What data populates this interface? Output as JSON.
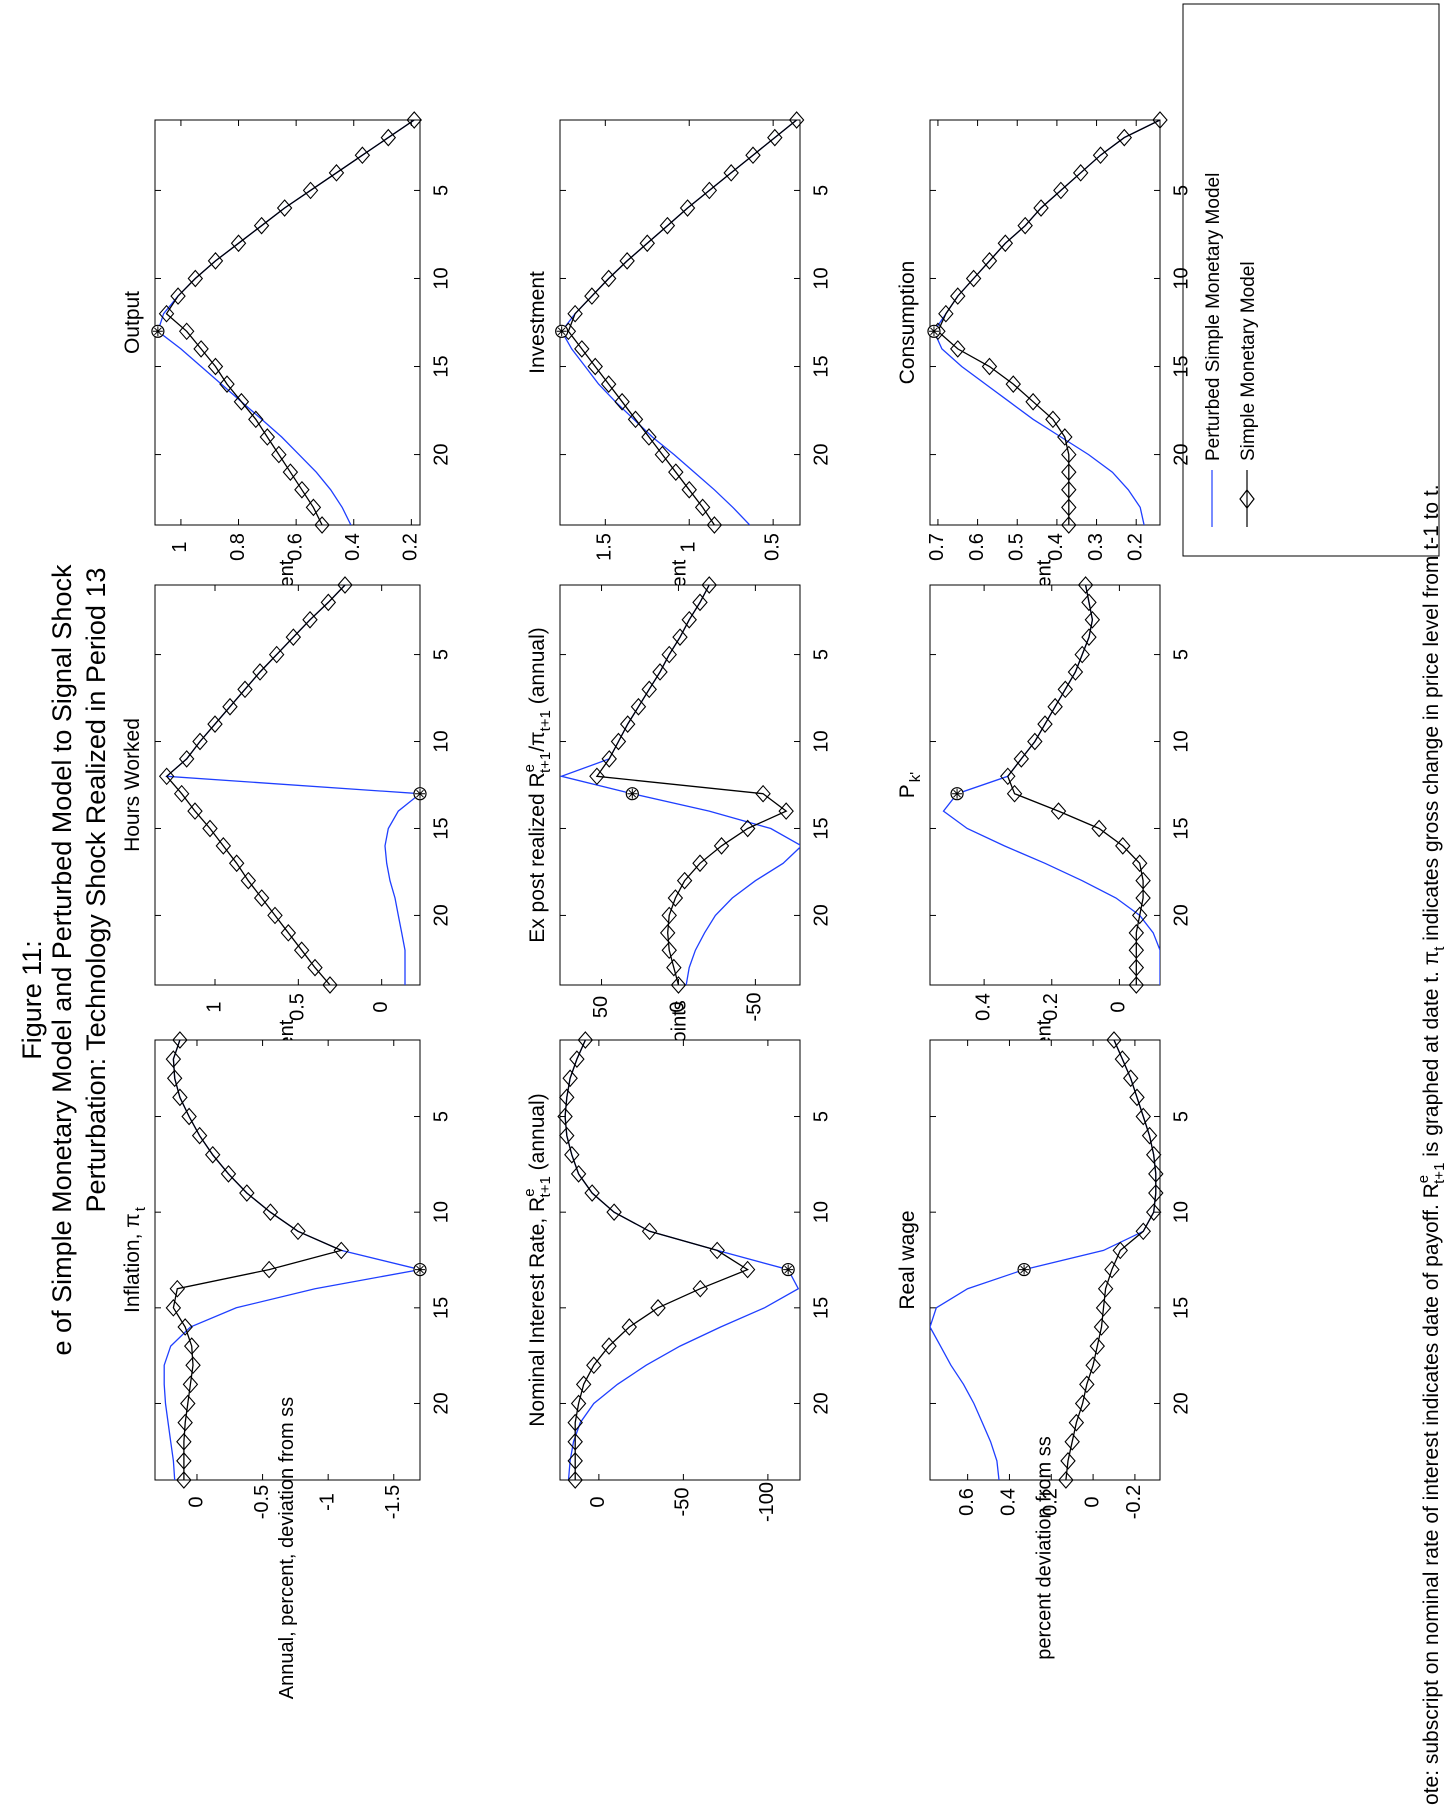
{
  "figure": {
    "title_line1": "Figure  11:",
    "title_line2": "e of Simple Monetary Model and Perturbed Model to Signal Shock",
    "title_line3": "Perturbation: Technology Shock Realized in Period 13",
    "note": "ote: subscript on nominal rate of interest indicates date of payoff. R",
    "note_tail": "is graphed at date t. π",
    "note_end": "indicates gross change in price level from t-1 to t."
  },
  "legend": {
    "entries": [
      {
        "label": "Perturbed Simple Monetary Model",
        "color": "#1f3fff",
        "marker": "none"
      },
      {
        "label": "Simple Monetary Model",
        "color": "#000000",
        "marker": "diamond"
      }
    ]
  },
  "colors": {
    "perturbed": "#1f3fff",
    "simple": "#000000",
    "axes": "#000000",
    "background": "#ffffff"
  },
  "chart_data": [
    {
      "type": "line",
      "title": "Output",
      "ylabel": "percent",
      "x": [
        1,
        2,
        3,
        4,
        5,
        6,
        7,
        8,
        9,
        10,
        11,
        12,
        13,
        14,
        15,
        16,
        17,
        18,
        19,
        20,
        21,
        22,
        23,
        24
      ],
      "xticks": [
        5,
        10,
        15,
        20
      ],
      "xlim": [
        1,
        24
      ],
      "ylim": [
        0.17,
        1.09
      ],
      "yticks": [
        0.2,
        0.4,
        0.6,
        0.8,
        1
      ],
      "ytick_labels": [
        "0.2",
        "0.4",
        "0.6",
        "0.8",
        "1"
      ],
      "marker_period": 13,
      "series": [
        {
          "name": "Perturbed Simple Monetary Model",
          "values": [
            0.19,
            0.28,
            0.37,
            0.46,
            0.55,
            0.64,
            0.72,
            0.8,
            0.88,
            0.95,
            1.01,
            1.06,
            1.08,
            1.0,
            0.93,
            0.86,
            0.79,
            0.72,
            0.65,
            0.59,
            0.53,
            0.48,
            0.44,
            0.41
          ]
        },
        {
          "name": "Simple Monetary Model",
          "values": [
            0.19,
            0.28,
            0.37,
            0.46,
            0.55,
            0.64,
            0.72,
            0.8,
            0.88,
            0.95,
            1.01,
            1.05,
            0.98,
            0.93,
            0.88,
            0.84,
            0.79,
            0.74,
            0.7,
            0.66,
            0.62,
            0.58,
            0.54,
            0.51
          ]
        }
      ]
    },
    {
      "type": "line",
      "title": "Investment",
      "ylabel": "percent",
      "x": [
        1,
        2,
        3,
        4,
        5,
        6,
        7,
        8,
        9,
        10,
        11,
        12,
        13,
        14,
        15,
        16,
        17,
        18,
        19,
        20,
        21,
        22,
        23,
        24
      ],
      "xticks": [
        5,
        10,
        15,
        20
      ],
      "xlim": [
        1,
        24
      ],
      "ylim": [
        0.34,
        1.77
      ],
      "yticks": [
        0.5,
        1,
        1.5
      ],
      "ytick_labels": [
        "0.5",
        "1",
        "1.5"
      ],
      "marker_period": 13,
      "series": [
        {
          "name": "Perturbed Simple Monetary Model",
          "values": [
            0.36,
            0.49,
            0.62,
            0.75,
            0.88,
            1.01,
            1.13,
            1.25,
            1.37,
            1.48,
            1.58,
            1.68,
            1.76,
            1.7,
            1.62,
            1.54,
            1.44,
            1.33,
            1.22,
            1.09,
            0.97,
            0.85,
            0.74,
            0.64
          ]
        },
        {
          "name": "Simple Monetary Model",
          "values": [
            0.36,
            0.49,
            0.62,
            0.75,
            0.88,
            1.01,
            1.13,
            1.25,
            1.37,
            1.48,
            1.58,
            1.68,
            1.72,
            1.64,
            1.56,
            1.48,
            1.4,
            1.32,
            1.24,
            1.16,
            1.08,
            1.0,
            0.92,
            0.85
          ]
        }
      ]
    },
    {
      "type": "line",
      "title": "Consumption",
      "ylabel": "percent",
      "x": [
        1,
        2,
        3,
        4,
        5,
        6,
        7,
        8,
        9,
        10,
        11,
        12,
        13,
        14,
        15,
        16,
        17,
        18,
        19,
        20,
        21,
        22,
        23,
        24
      ],
      "xticks": [
        5,
        10,
        15,
        20
      ],
      "xlim": [
        1,
        24
      ],
      "ylim": [
        0.14,
        0.72
      ],
      "yticks": [
        0.2,
        0.3,
        0.4,
        0.5,
        0.6,
        0.7
      ],
      "ytick_labels": [
        "0.2",
        "0.3",
        "0.4",
        "0.5",
        "0.6",
        "0.7"
      ],
      "marker_period": 13,
      "series": [
        {
          "name": "Perturbed Simple Monetary Model",
          "values": [
            0.14,
            0.23,
            0.29,
            0.34,
            0.39,
            0.44,
            0.48,
            0.53,
            0.57,
            0.61,
            0.65,
            0.68,
            0.71,
            0.69,
            0.64,
            0.58,
            0.52,
            0.46,
            0.39,
            0.32,
            0.26,
            0.22,
            0.19,
            0.18
          ]
        },
        {
          "name": "Simple Monetary Model",
          "values": [
            0.14,
            0.23,
            0.29,
            0.34,
            0.39,
            0.44,
            0.48,
            0.53,
            0.57,
            0.61,
            0.65,
            0.68,
            0.7,
            0.65,
            0.57,
            0.51,
            0.46,
            0.41,
            0.38,
            0.37,
            0.37,
            0.37,
            0.37,
            0.37
          ]
        }
      ]
    },
    {
      "type": "line",
      "title": "Hours Worked",
      "ylabel": "percent",
      "x": [
        1,
        2,
        3,
        4,
        5,
        6,
        7,
        8,
        9,
        10,
        11,
        12,
        13,
        14,
        15,
        16,
        17,
        18,
        19,
        20,
        21,
        22,
        23,
        24
      ],
      "xticks": [
        5,
        10,
        15,
        20
      ],
      "xlim": [
        1,
        24
      ],
      "ylim": [
        -0.23,
        1.36
      ],
      "yticks": [
        0,
        0.5,
        1
      ],
      "ytick_labels": [
        "0",
        "0.5",
        "1"
      ],
      "marker_period": 13,
      "series": [
        {
          "name": "Perturbed Simple Monetary Model",
          "values": [
            0.22,
            0.32,
            0.43,
            0.53,
            0.63,
            0.73,
            0.82,
            0.91,
            1.0,
            1.09,
            1.17,
            1.29,
            -0.23,
            -0.1,
            -0.04,
            -0.02,
            -0.03,
            -0.05,
            -0.08,
            -0.1,
            -0.12,
            -0.14,
            -0.14,
            -0.14
          ]
        },
        {
          "name": "Simple Monetary Model",
          "values": [
            0.22,
            0.32,
            0.43,
            0.53,
            0.63,
            0.73,
            0.82,
            0.91,
            1.0,
            1.09,
            1.17,
            1.29,
            1.2,
            1.12,
            1.03,
            0.95,
            0.87,
            0.8,
            0.72,
            0.64,
            0.56,
            0.48,
            0.4,
            0.31
          ]
        }
      ]
    },
    {
      "type": "line",
      "title": "Ex post realized R",
      "title_sup": "e",
      "title_sub": "t+1",
      "title_div": "/π",
      "title_div_sub": "t+1",
      "title_suffix": "(annual)",
      "ylabel": "basis points",
      "x": [
        1,
        2,
        3,
        4,
        5,
        6,
        7,
        8,
        9,
        10,
        11,
        12,
        13,
        14,
        15,
        16,
        17,
        18,
        19,
        20,
        21,
        22,
        23,
        24
      ],
      "xticks": [
        5,
        10,
        15,
        20
      ],
      "xlim": [
        1,
        24
      ],
      "ylim": [
        -79,
        77
      ],
      "yticks": [
        -50,
        0,
        50
      ],
      "ytick_labels": [
        "-50",
        "0",
        "50"
      ],
      "marker_period": 13,
      "series": [
        {
          "name": "Perturbed Simple Monetary Model",
          "values": [
            -20,
            -14,
            -7,
            -1,
            6,
            12,
            19,
            26,
            33,
            39,
            45,
            76,
            30,
            -20,
            -60,
            -80,
            -68,
            -50,
            -35,
            -24,
            -17,
            -11,
            -7,
            -5
          ]
        },
        {
          "name": "Simple Monetary Model",
          "values": [
            -20,
            -14,
            -7,
            -1,
            6,
            12,
            19,
            26,
            33,
            39,
            45,
            53,
            -55,
            -70,
            -45,
            -28,
            -14,
            -4,
            2,
            6,
            7,
            6,
            3,
            0
          ]
        }
      ]
    },
    {
      "type": "line",
      "title": "P",
      "title_sub": "k'",
      "ylabel": "percent",
      "x": [
        1,
        2,
        3,
        4,
        5,
        6,
        7,
        8,
        9,
        10,
        11,
        12,
        13,
        14,
        15,
        16,
        17,
        18,
        19,
        20,
        21,
        22,
        23,
        24
      ],
      "xticks": [
        5,
        10,
        15,
        20
      ],
      "xlim": [
        1,
        24
      ],
      "ylim": [
        -0.12,
        0.56
      ],
      "yticks": [
        0,
        0.2,
        0.4
      ],
      "ytick_labels": [
        "0",
        "0.2",
        "0.4"
      ],
      "marker_period": 13,
      "series": [
        {
          "name": "Perturbed Simple Monetary Model",
          "values": [
            0.1,
            0.09,
            0.08,
            0.09,
            0.11,
            0.13,
            0.16,
            0.19,
            0.22,
            0.25,
            0.29,
            0.33,
            0.48,
            0.52,
            0.45,
            0.34,
            0.22,
            0.11,
            0.01,
            -0.06,
            -0.1,
            -0.12,
            -0.12,
            -0.12
          ]
        },
        {
          "name": "Simple Monetary Model",
          "values": [
            0.1,
            0.09,
            0.08,
            0.09,
            0.11,
            0.13,
            0.16,
            0.19,
            0.22,
            0.25,
            0.29,
            0.33,
            0.31,
            0.18,
            0.06,
            -0.01,
            -0.06,
            -0.07,
            -0.07,
            -0.06,
            -0.05,
            -0.05,
            -0.05,
            -0.05
          ]
        }
      ]
    },
    {
      "type": "line",
      "title": "Inflation, π",
      "title_sub": "t",
      "ylabel": "Annual, percent, deviation from ss",
      "x": [
        1,
        2,
        3,
        4,
        5,
        6,
        7,
        8,
        9,
        10,
        11,
        12,
        13,
        14,
        15,
        16,
        17,
        18,
        19,
        20,
        21,
        22,
        23,
        24
      ],
      "xticks": [
        5,
        10,
        15,
        20
      ],
      "xlim": [
        1,
        24
      ],
      "ylim": [
        -1.7,
        0.32
      ],
      "yticks": [
        -1.5,
        -1,
        -0.5,
        0
      ],
      "ytick_labels": [
        "-1.5",
        "-1",
        "-0.5",
        "0"
      ],
      "marker_period": 13,
      "series": [
        {
          "name": "Perturbed Simple Monetary Model",
          "values": [
            0.13,
            0.18,
            0.17,
            0.13,
            0.06,
            -0.02,
            -0.12,
            -0.24,
            -0.38,
            -0.56,
            -0.77,
            -1.1,
            -1.7,
            -0.9,
            -0.3,
            0.05,
            0.2,
            0.25,
            0.25,
            0.24,
            0.22,
            0.2,
            0.18,
            0.17
          ]
        },
        {
          "name": "Simple Monetary Model",
          "values": [
            0.13,
            0.18,
            0.17,
            0.13,
            0.06,
            -0.02,
            -0.12,
            -0.24,
            -0.38,
            -0.56,
            -0.77,
            -1.1,
            -0.55,
            0.15,
            0.18,
            0.09,
            0.04,
            0.03,
            0.05,
            0.07,
            0.09,
            0.1,
            0.1,
            0.1
          ]
        }
      ]
    },
    {
      "type": "line",
      "title": "Nominal Interest Rate,  R",
      "title_sup": "e",
      "title_sub": "t+1",
      "title_suffix": "(annual)",
      "ylabel": "",
      "x": [
        1,
        2,
        3,
        4,
        5,
        6,
        7,
        8,
        9,
        10,
        11,
        12,
        13,
        14,
        15,
        16,
        17,
        18,
        19,
        20,
        21,
        22,
        23,
        24
      ],
      "xticks": [
        5,
        10,
        15,
        20
      ],
      "xlim": [
        1,
        24
      ],
      "ylim": [
        -119,
        23
      ],
      "yticks": [
        -100,
        -50,
        0
      ],
      "ytick_labels": [
        "-100",
        "-50",
        "0"
      ],
      "marker_period": 13,
      "series": [
        {
          "name": "Perturbed Simple Monetary Model",
          "values": [
            8,
            13,
            17,
            19,
            20,
            19,
            16,
            12,
            4,
            -9,
            -30,
            -70,
            -112,
            -118,
            -98,
            -72,
            -48,
            -28,
            -11,
            3,
            11,
            15,
            17,
            18
          ]
        },
        {
          "name": "Simple Monetary Model",
          "values": [
            8,
            13,
            17,
            19,
            20,
            19,
            16,
            12,
            4,
            -9,
            -30,
            -70,
            -88,
            -60,
            -35,
            -18,
            -6,
            3,
            9,
            12,
            14,
            14,
            14,
            14
          ]
        }
      ]
    },
    {
      "type": "line",
      "title": "Real wage",
      "ylabel": "percent deviation from ss",
      "x": [
        1,
        2,
        3,
        4,
        5,
        6,
        7,
        8,
        9,
        10,
        11,
        12,
        13,
        14,
        15,
        16,
        17,
        18,
        19,
        20,
        21,
        22,
        23,
        24
      ],
      "xticks": [
        5,
        10,
        15,
        20
      ],
      "xlim": [
        1,
        24
      ],
      "ylim": [
        -0.32,
        0.78
      ],
      "yticks": [
        -0.2,
        0,
        0.2,
        0.4,
        0.6
      ],
      "ytick_labels": [
        "-0.2",
        "0",
        "0.2",
        "0.4",
        "0.6"
      ],
      "marker_period": 13,
      "series": [
        {
          "name": "Perturbed Simple Monetary Model",
          "values": [
            -0.1,
            -0.14,
            -0.18,
            -0.21,
            -0.24,
            -0.27,
            -0.29,
            -0.3,
            -0.3,
            -0.29,
            -0.24,
            -0.05,
            0.33,
            0.6,
            0.75,
            0.78,
            0.73,
            0.68,
            0.62,
            0.57,
            0.53,
            0.49,
            0.46,
            0.45
          ]
        },
        {
          "name": "Simple Monetary Model",
          "values": [
            -0.1,
            -0.14,
            -0.18,
            -0.21,
            -0.24,
            -0.27,
            -0.29,
            -0.3,
            -0.3,
            -0.29,
            -0.24,
            -0.13,
            -0.09,
            -0.06,
            -0.05,
            -0.04,
            -0.02,
            0.0,
            0.03,
            0.05,
            0.08,
            0.1,
            0.12,
            0.13
          ]
        }
      ]
    }
  ]
}
